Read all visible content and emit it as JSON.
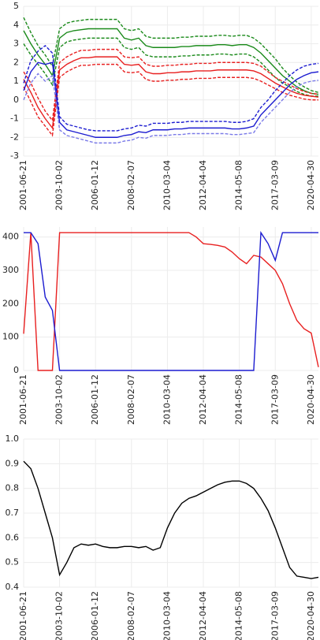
{
  "chart_data": [
    {
      "type": "line",
      "categories": [
        "2001-06-21",
        null,
        null,
        null,
        null,
        "2003-10-02",
        null,
        null,
        null,
        null,
        "2006-01-12",
        null,
        null,
        null,
        null,
        "2008-02-07",
        null,
        null,
        null,
        null,
        "2010-03-04",
        null,
        null,
        null,
        null,
        "2012-04-04",
        null,
        null,
        null,
        null,
        "2014-05-08",
        null,
        null,
        null,
        null,
        "2017-03-09",
        null,
        null,
        null,
        null,
        "2020-04-30",
        null
      ],
      "ylim": [
        -3,
        5
      ],
      "yticks": [
        -3,
        -2,
        -1,
        0,
        1,
        2,
        3,
        4,
        5
      ],
      "grid": true,
      "series": [
        {
          "color": "#1a8a1a",
          "style": "solid",
          "values": [
            3.7,
            3.0,
            2.4,
            1.9,
            1.3,
            3.3,
            3.6,
            3.7,
            3.75,
            3.8,
            3.8,
            3.8,
            3.8,
            3.8,
            3.3,
            3.2,
            3.3,
            2.9,
            2.8,
            2.8,
            2.8,
            2.8,
            2.85,
            2.85,
            2.9,
            2.9,
            2.9,
            2.95,
            2.95,
            2.9,
            2.95,
            2.95,
            2.8,
            2.5,
            2.1,
            1.7,
            1.3,
            1.0,
            0.7,
            0.5,
            0.35,
            0.3
          ]
        },
        {
          "color": "#1a8a1a",
          "style": "dashed",
          "values": [
            4.4,
            3.6,
            2.9,
            2.4,
            1.8,
            3.8,
            4.1,
            4.2,
            4.25,
            4.3,
            4.3,
            4.3,
            4.3,
            4.3,
            3.8,
            3.7,
            3.8,
            3.4,
            3.3,
            3.3,
            3.3,
            3.3,
            3.35,
            3.35,
            3.4,
            3.4,
            3.4,
            3.45,
            3.45,
            3.4,
            3.45,
            3.45,
            3.3,
            3.0,
            2.6,
            2.2,
            1.7,
            1.3,
            0.95,
            0.7,
            0.5,
            0.4
          ]
        },
        {
          "color": "#1a8a1a",
          "style": "dashed",
          "values": [
            3.0,
            2.4,
            1.9,
            1.4,
            0.8,
            2.8,
            3.1,
            3.2,
            3.25,
            3.3,
            3.3,
            3.3,
            3.3,
            3.3,
            2.8,
            2.7,
            2.8,
            2.4,
            2.3,
            2.3,
            2.3,
            2.3,
            2.35,
            2.35,
            2.4,
            2.4,
            2.4,
            2.45,
            2.45,
            2.4,
            2.45,
            2.45,
            2.3,
            2.0,
            1.6,
            1.2,
            0.9,
            0.7,
            0.45,
            0.3,
            0.2,
            0.2
          ]
        },
        {
          "color": "#e82020",
          "style": "solid",
          "values": [
            1.1,
            0.4,
            -0.4,
            -1.0,
            -1.5,
            1.6,
            1.9,
            2.1,
            2.25,
            2.25,
            2.3,
            2.3,
            2.3,
            2.3,
            1.9,
            1.85,
            1.9,
            1.5,
            1.4,
            1.4,
            1.45,
            1.45,
            1.5,
            1.5,
            1.55,
            1.55,
            1.55,
            1.6,
            1.6,
            1.6,
            1.6,
            1.6,
            1.55,
            1.4,
            1.15,
            0.9,
            0.7,
            0.5,
            0.35,
            0.25,
            0.2,
            0.15
          ]
        },
        {
          "color": "#e82020",
          "style": "dashed",
          "values": [
            1.5,
            0.9,
            0.1,
            -0.6,
            -1.1,
            2.0,
            2.3,
            2.5,
            2.65,
            2.65,
            2.7,
            2.7,
            2.7,
            2.7,
            2.3,
            2.25,
            2.3,
            1.9,
            1.8,
            1.8,
            1.85,
            1.85,
            1.9,
            1.9,
            1.95,
            1.95,
            1.95,
            2.0,
            2.0,
            2.0,
            2.0,
            2.0,
            1.95,
            1.8,
            1.5,
            1.2,
            1.0,
            0.8,
            0.6,
            0.45,
            0.35,
            0.3
          ]
        },
        {
          "color": "#e82020",
          "style": "dashed",
          "values": [
            0.7,
            -0.1,
            -0.9,
            -1.4,
            -1.9,
            1.2,
            1.5,
            1.7,
            1.85,
            1.85,
            1.9,
            1.9,
            1.9,
            1.9,
            1.5,
            1.45,
            1.5,
            1.1,
            1.0,
            1.0,
            1.05,
            1.05,
            1.1,
            1.1,
            1.15,
            1.15,
            1.15,
            1.2,
            1.2,
            1.2,
            1.2,
            1.2,
            1.15,
            1.0,
            0.8,
            0.6,
            0.4,
            0.25,
            0.15,
            0.05,
            0.0,
            0.0
          ]
        },
        {
          "color": "#1c1cd0",
          "style": "solid",
          "values": [
            0.5,
            1.5,
            2.0,
            1.9,
            2.0,
            -1.2,
            -1.6,
            -1.7,
            -1.8,
            -1.9,
            -2.0,
            -2.0,
            -2.0,
            -2.0,
            -1.9,
            -1.85,
            -1.7,
            -1.75,
            -1.6,
            -1.6,
            -1.6,
            -1.55,
            -1.55,
            -1.5,
            -1.5,
            -1.5,
            -1.5,
            -1.5,
            -1.5,
            -1.55,
            -1.55,
            -1.5,
            -1.4,
            -0.8,
            -0.4,
            0.0,
            0.4,
            0.8,
            1.1,
            1.3,
            1.45,
            1.5
          ]
        },
        {
          "color": "#1c1cd0",
          "style": "dashed",
          "values": [
            0.9,
            2.1,
            2.6,
            2.9,
            2.5,
            -0.9,
            -1.3,
            -1.4,
            -1.5,
            -1.6,
            -1.65,
            -1.65,
            -1.65,
            -1.65,
            -1.55,
            -1.5,
            -1.35,
            -1.4,
            -1.25,
            -1.25,
            -1.25,
            -1.2,
            -1.2,
            -1.15,
            -1.15,
            -1.15,
            -1.15,
            -1.15,
            -1.15,
            -1.2,
            -1.2,
            -1.15,
            -1.0,
            -0.4,
            0.0,
            0.5,
            0.9,
            1.3,
            1.6,
            1.8,
            1.9,
            1.95
          ]
        },
        {
          "color": "#7a7ae8",
          "style": "dashed",
          "values": [
            0.0,
            0.9,
            1.4,
            1.0,
            1.3,
            -1.6,
            -1.9,
            -2.0,
            -2.1,
            -2.2,
            -2.3,
            -2.3,
            -2.3,
            -2.3,
            -2.2,
            -2.15,
            -2.0,
            -2.05,
            -1.9,
            -1.9,
            -1.9,
            -1.85,
            -1.85,
            -1.8,
            -1.8,
            -1.8,
            -1.8,
            -1.8,
            -1.8,
            -1.85,
            -1.85,
            -1.8,
            -1.75,
            -1.2,
            -0.8,
            -0.4,
            0.0,
            0.4,
            0.7,
            0.9,
            1.0,
            1.05
          ]
        }
      ]
    },
    {
      "type": "line",
      "categories": [
        "2001-06-21",
        null,
        null,
        null,
        null,
        "2003-10-02",
        null,
        null,
        null,
        null,
        "2006-01-12",
        null,
        null,
        null,
        null,
        "2008-02-07",
        null,
        null,
        null,
        null,
        "2010-03-04",
        null,
        null,
        null,
        null,
        "2012-04-04",
        null,
        null,
        null,
        null,
        "2014-05-08",
        null,
        null,
        null,
        null,
        "2017-03-09",
        null,
        null,
        null,
        null,
        "2020-04-30",
        null
      ],
      "ylim": [
        0,
        430
      ],
      "yticks": [
        0,
        100,
        200,
        300,
        400
      ],
      "grid": true,
      "series": [
        {
          "color": "#e82020",
          "style": "solid",
          "values": [
            110,
            413,
            0,
            0,
            0,
            413,
            413,
            413,
            413,
            413,
            413,
            413,
            413,
            413,
            413,
            413,
            413,
            413,
            413,
            413,
            413,
            413,
            413,
            413,
            400,
            380,
            378,
            375,
            370,
            355,
            335,
            320,
            345,
            340,
            320,
            300,
            260,
            200,
            150,
            125,
            112,
            10
          ]
        },
        {
          "color": "#1c1cd0",
          "style": "solid",
          "values": [
            413,
            413,
            380,
            220,
            180,
            0,
            0,
            0,
            0,
            0,
            0,
            0,
            0,
            0,
            0,
            0,
            0,
            0,
            0,
            0,
            0,
            0,
            0,
            0,
            0,
            0,
            0,
            0,
            0,
            0,
            0,
            0,
            0,
            413,
            380,
            330,
            413,
            413,
            413,
            413,
            413,
            413
          ]
        }
      ]
    },
    {
      "type": "line",
      "categories": [
        "2001-06-21",
        null,
        null,
        null,
        null,
        "2003-10-02",
        null,
        null,
        null,
        null,
        "2006-01-12",
        null,
        null,
        null,
        null,
        "2008-02-07",
        null,
        null,
        null,
        null,
        "2010-03-04",
        null,
        null,
        null,
        null,
        "2012-04-04",
        null,
        null,
        null,
        null,
        "2014-05-08",
        null,
        null,
        null,
        null,
        "2017-03-09",
        null,
        null,
        null,
        null,
        "2020-04-30",
        null
      ],
      "ylim": [
        0.4,
        1.0
      ],
      "yticks": [
        0.4,
        0.5,
        0.6,
        0.7,
        0.8,
        0.9,
        {
          "value": 1.0,
          "label": "1.0"
        }
      ],
      "grid": true,
      "series": [
        {
          "color": "#000000",
          "style": "solid",
          "values": [
            0.91,
            0.88,
            0.8,
            0.7,
            0.6,
            0.45,
            0.5,
            0.56,
            0.575,
            0.57,
            0.575,
            0.565,
            0.56,
            0.56,
            0.565,
            0.565,
            0.56,
            0.565,
            0.55,
            0.56,
            0.64,
            0.7,
            0.74,
            0.76,
            0.77,
            0.785,
            0.8,
            0.815,
            0.825,
            0.83,
            0.83,
            0.82,
            0.8,
            0.76,
            0.71,
            0.64,
            0.56,
            0.48,
            0.445,
            0.44,
            0.435,
            0.44
          ]
        }
      ]
    }
  ]
}
